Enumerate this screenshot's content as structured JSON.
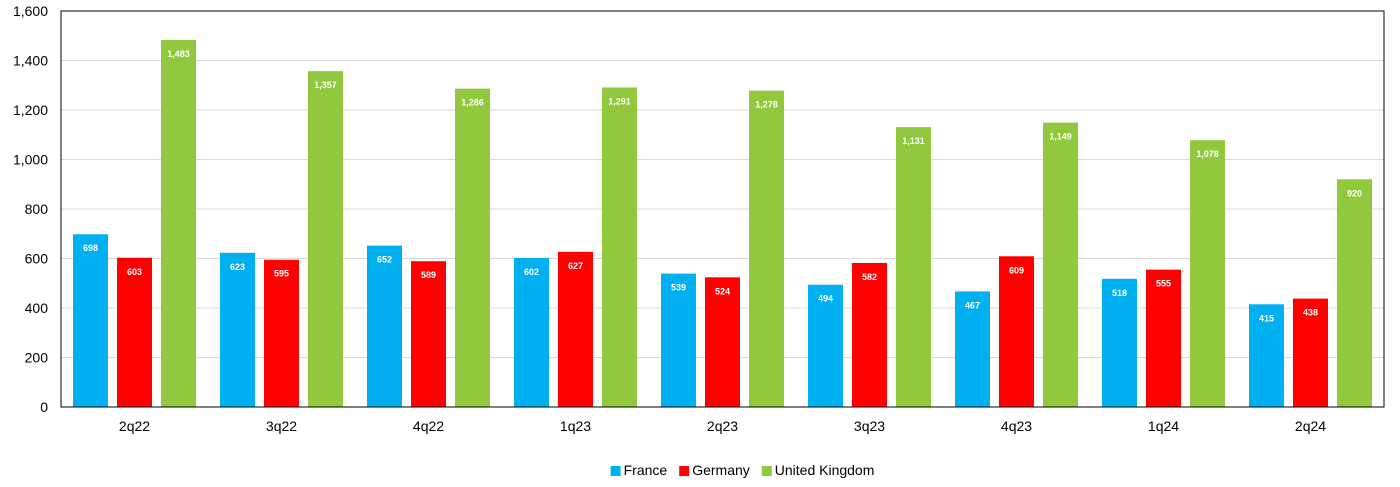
{
  "chart_data": {
    "type": "bar",
    "categories": [
      "2q22",
      "3q22",
      "4q22",
      "1q23",
      "2q23",
      "3q23",
      "4q23",
      "1q24",
      "2q24"
    ],
    "series": [
      {
        "name": "France",
        "color": "#00B0F0",
        "values": [
          698,
          623,
          652,
          602,
          539,
          494,
          467,
          518,
          415
        ],
        "labels": [
          "698",
          "623",
          "652",
          "602",
          "539",
          "494",
          "467",
          "518",
          "415"
        ]
      },
      {
        "name": "Germany",
        "color": "#FF0000",
        "values": [
          603,
          595,
          589,
          627,
          524,
          582,
          609,
          555,
          438
        ],
        "labels": [
          "603",
          "595",
          "589",
          "627",
          "524",
          "582",
          "609",
          "555",
          "438"
        ]
      },
      {
        "name": "United Kingdom",
        "color": "#92C83E",
        "values": [
          1483,
          1357,
          1286,
          1291,
          1278,
          1131,
          1149,
          1078,
          920
        ],
        "labels": [
          "1,483",
          "1,357",
          "1,286",
          "1,291",
          "1,278",
          "1,131",
          "1,149",
          "1,078",
          "920"
        ]
      }
    ],
    "ylim": [
      0,
      1600
    ],
    "yticks": [
      0,
      200,
      400,
      600,
      800,
      1000,
      1200,
      1400,
      1600
    ],
    "ytick_labels": [
      "0",
      "200",
      "400",
      "600",
      "800",
      "1,000",
      "1,200",
      "1,400",
      "1,600"
    ],
    "grid": true,
    "legend_position": "bottom-center"
  }
}
